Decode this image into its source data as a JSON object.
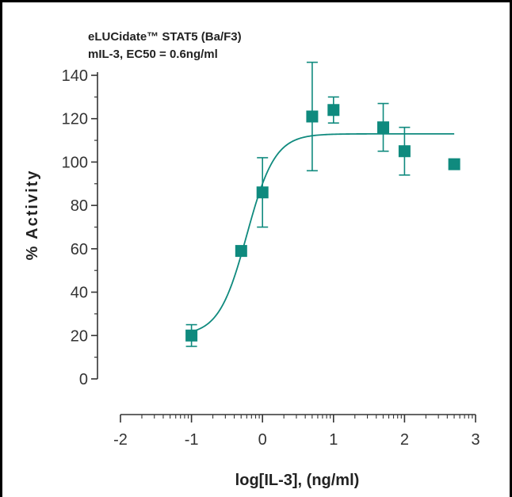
{
  "chart_data": {
    "type": "scatter",
    "title_lines": [
      "eLUCidate™ STAT5 (Ba/F3)",
      "mIL-3, EC50 = 0.6ng/ml"
    ],
    "xlabel": "log[IL-3], (ng/ml)",
    "ylabel": "% Activity",
    "xlim": [
      -2,
      3
    ],
    "ylim": [
      0,
      140
    ],
    "x_ticks": [
      "-2",
      "-1",
      "0",
      "1",
      "2",
      "3"
    ],
    "y_ticks": [
      "0",
      "20",
      "40",
      "60",
      "80",
      "100",
      "120",
      "140"
    ],
    "grid": false,
    "series": [
      {
        "x": [
          -1.0,
          -0.3,
          0.0,
          0.7,
          1.0,
          1.7,
          2.0,
          2.7
        ],
        "y": [
          20,
          59,
          86,
          121,
          124,
          116,
          105,
          99
        ],
        "error": [
          5,
          0,
          16,
          25,
          6,
          11,
          11,
          0
        ],
        "color": "#0f8a7e"
      }
    ],
    "fit": {
      "bottom": 20,
      "top": 113,
      "log_ec50": -0.22,
      "hill": 2.2,
      "x_range": [
        -1.0,
        2.7
      ]
    }
  }
}
